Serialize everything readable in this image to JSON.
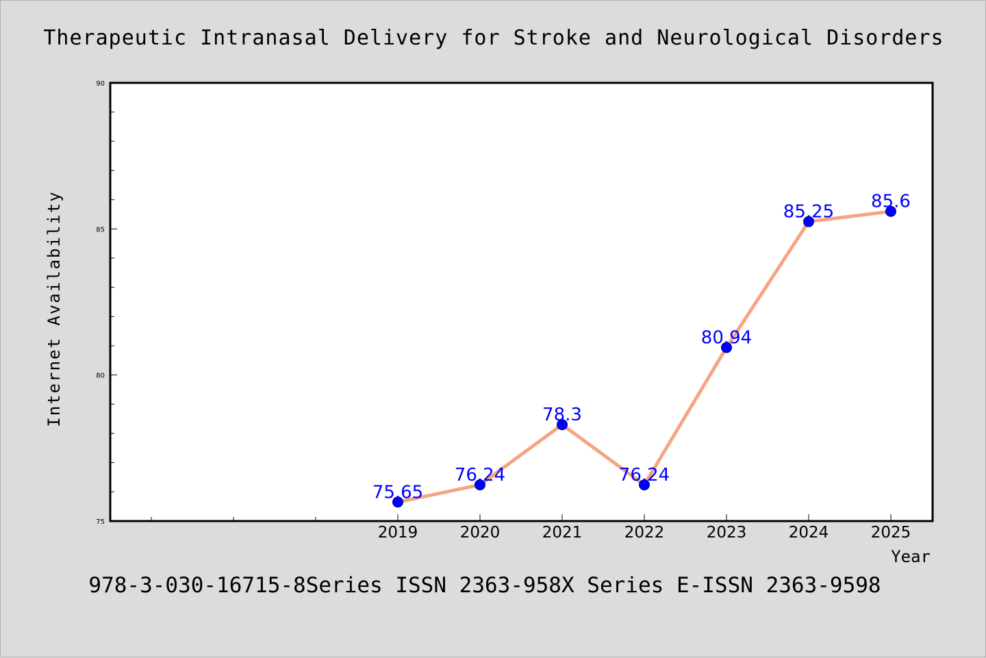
{
  "chart_data": {
    "type": "line",
    "title": "Therapeutic Intranasal Delivery for Stroke and Neurological Disorders",
    "xlabel": "Year",
    "ylabel": "Internet Availability",
    "footer": "978-3-030-16715-8Series ISSN 2363-958X Series E-ISSN 2363-9598",
    "categories": [
      "2019",
      "2020",
      "2021",
      "2022",
      "2023",
      "2024",
      "2025"
    ],
    "series": [
      {
        "values": [
          75.65,
          76.24,
          78.3,
          76.24,
          80.94,
          85.25,
          85.6
        ],
        "labels": [
          "75.65",
          "76.24",
          "78.3",
          "76.24",
          "80.94",
          "85.25",
          "85.6"
        ]
      }
    ],
    "ylim": [
      75,
      90
    ],
    "yticks": [
      75,
      80,
      85,
      90
    ],
    "ytick_labels": [
      "75",
      "80",
      "85",
      "90"
    ],
    "ylabel_gap": "",
    "grid": false,
    "legend": "none",
    "colors": {
      "line": "#f4a582",
      "marker": "#0000ff",
      "data_label": "#0000ff",
      "background": "#dcdcdc",
      "plot_background": "#ffffff"
    }
  }
}
